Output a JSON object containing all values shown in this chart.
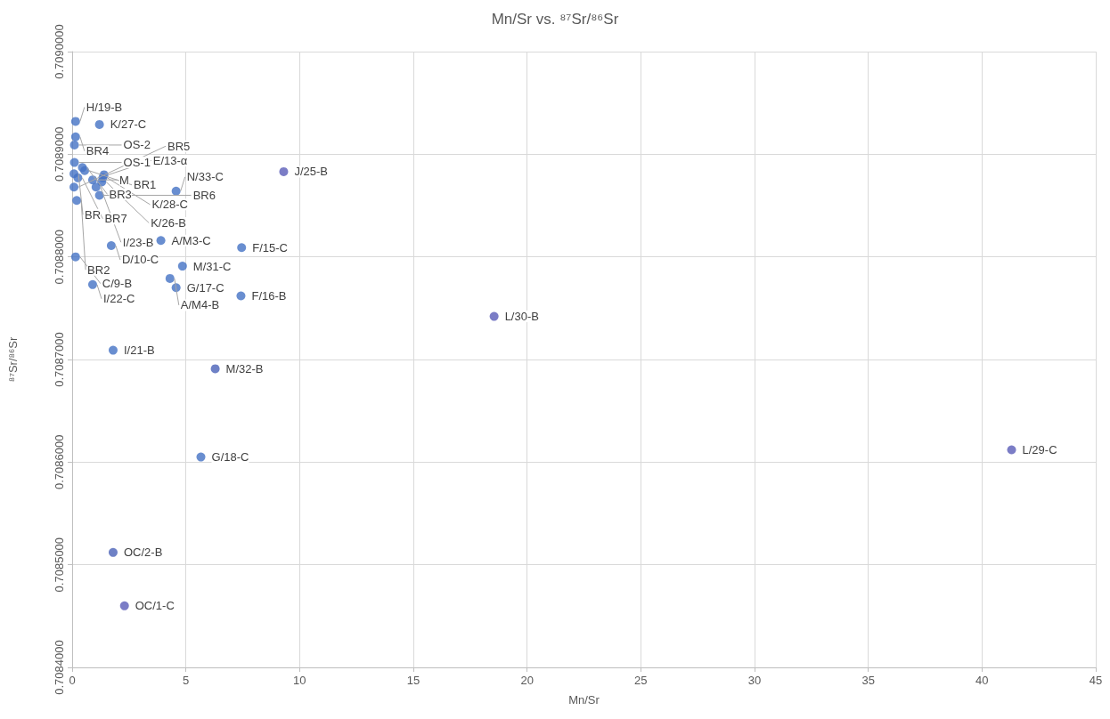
{
  "chart_data": {
    "type": "scatter",
    "title": "Mn/Sr vs. ⁸⁷Sr/⁸⁶Sr",
    "xlabel": "Mn/Sr",
    "ylabel": "⁸⁷Sr/⁸⁶Sr",
    "xlim": [
      0,
      45
    ],
    "xticks": [
      0,
      5,
      10,
      15,
      20,
      25,
      30,
      35,
      40,
      45
    ],
    "ylim": [
      0.7084,
      0.709
    ],
    "yticks": [
      {
        "value": 0.7084,
        "label": "0.7084000"
      },
      {
        "value": 0.7085,
        "label": "0.7085000"
      },
      {
        "value": 0.7086,
        "label": "0.7086000"
      },
      {
        "value": 0.7087,
        "label": "0.7087000"
      },
      {
        "value": 0.7088,
        "label": "0.7088000"
      },
      {
        "value": 0.7089,
        "label": "0.7089000"
      },
      {
        "value": 0.709,
        "label": "0.7090000"
      }
    ],
    "grid": true,
    "marker": "circle",
    "x": [
      0.15,
      1.2,
      0.15,
      0.1,
      0.1,
      0.45,
      0.55,
      0.08,
      0.25,
      1.4,
      1.35,
      1.3,
      1.05,
      0.08,
      1.2,
      0.9,
      0.2,
      3.9,
      1.72,
      7.45,
      0.15,
      4.85,
      4.3,
      4.57,
      0.9,
      7.42,
      9.3,
      4.57,
      18.55,
      1.8,
      6.29,
      5.66,
      41.3,
      1.8,
      2.3
    ],
    "values": [
      0.708932,
      0.708929,
      0.708917,
      0.708909,
      0.708892,
      0.708887,
      0.708884,
      0.708881,
      0.708877,
      0.70888,
      0.708877,
      0.708873,
      0.708868,
      0.708868,
      0.70886,
      0.708875,
      0.708855,
      0.708816,
      0.708811,
      0.708809,
      0.7088,
      0.708791,
      0.708779,
      0.70877,
      0.708773,
      0.708762,
      0.708883,
      0.708864,
      0.708742,
      0.708709,
      0.708691,
      0.708605,
      0.708612,
      0.708512,
      0.70846
    ],
    "colors": [
      "#4472c4",
      "#4472c4",
      "#4472c4",
      "#4472c4",
      "#4472c4",
      "#4472c4",
      "#4472c4",
      "#4472c4",
      "#4472c4",
      "#4472c4",
      "#4472c4",
      "#4472c4",
      "#4472c4",
      "#4472c4",
      "#4472c4",
      "#4472c4",
      "#4472c4",
      "#4472c4",
      "#4472c4",
      "#4472c4",
      "#4472c4",
      "#4472c4",
      "#4472c4",
      "#4472c4",
      "#4472c4",
      "#4472c4",
      "#5a5db8",
      "#4472c4",
      "#5a5db8",
      "#4472c4",
      "#4a62b8",
      "#4472c4",
      "#5a5db8",
      "#4a62b8",
      "#5a5db8"
    ],
    "annotations": [
      {
        "text": "H/19-B",
        "x": 0.15,
        "y": 0.708932
      },
      {
        "text": "K/27-C",
        "x": 1.2,
        "y": 0.708929
      },
      {
        "text": "BR4",
        "x": 0.15,
        "y": 0.708917
      },
      {
        "text": "OS-2",
        "x": 0.1,
        "y": 0.708909
      },
      {
        "text": "OS-1",
        "x": 0.1,
        "y": 0.708892
      },
      {
        "text": "BR3",
        "x": 0.45,
        "y": 0.708887
      },
      {
        "text": "BR1",
        "x": 0.55,
        "y": 0.708884
      },
      {
        "text": "BR",
        "x": 0.08,
        "y": 0.708881
      },
      {
        "text": "BR7",
        "x": 0.25,
        "y": 0.708877
      },
      {
        "text": "E/13-α",
        "x": 1.4,
        "y": 0.70888
      },
      {
        "text": "K/28-C",
        "x": 1.35,
        "y": 0.708877
      },
      {
        "text": "K/26-B",
        "x": 1.3,
        "y": 0.708873
      },
      {
        "text": "I/23-B",
        "x": 1.05,
        "y": 0.708868
      },
      {
        "text": "BR5",
        "x": 0.08,
        "y": 0.708868
      },
      {
        "text": "BR6",
        "x": 1.2,
        "y": 0.70886
      },
      {
        "text": "M",
        "x": 0.9,
        "y": 0.708875
      },
      {
        "text": "BR2",
        "x": 0.2,
        "y": 0.708855
      },
      {
        "text": "A/M3-C",
        "x": 3.9,
        "y": 0.708816
      },
      {
        "text": "D/10-C",
        "x": 1.72,
        "y": 0.708811
      },
      {
        "text": "F/15-C",
        "x": 7.45,
        "y": 0.708809
      },
      {
        "text": "C/9-B",
        "x": 0.15,
        "y": 0.7088
      },
      {
        "text": "M/31-C",
        "x": 4.85,
        "y": 0.708791
      },
      {
        "text": "A/M4-B",
        "x": 4.3,
        "y": 0.708779
      },
      {
        "text": "G/17-C",
        "x": 4.57,
        "y": 0.70877
      },
      {
        "text": "I/22-C",
        "x": 0.9,
        "y": 0.708773
      },
      {
        "text": "F/16-B",
        "x": 7.42,
        "y": 0.708762
      },
      {
        "text": "J/25-B",
        "x": 9.3,
        "y": 0.708883
      },
      {
        "text": "N/33-C",
        "x": 4.57,
        "y": 0.708864
      },
      {
        "text": "L/30-B",
        "x": 18.55,
        "y": 0.708742
      },
      {
        "text": "I/21-B",
        "x": 1.8,
        "y": 0.708709
      },
      {
        "text": "M/32-B",
        "x": 6.29,
        "y": 0.708691
      },
      {
        "text": "G/18-C",
        "x": 5.66,
        "y": 0.708605
      },
      {
        "text": "L/29-C",
        "x": 41.3,
        "y": 0.708612
      },
      {
        "text": "OC/2-B",
        "x": 1.8,
        "y": 0.708512
      },
      {
        "text": "OC/1-C",
        "x": 2.3,
        "y": 0.70846
      }
    ]
  }
}
